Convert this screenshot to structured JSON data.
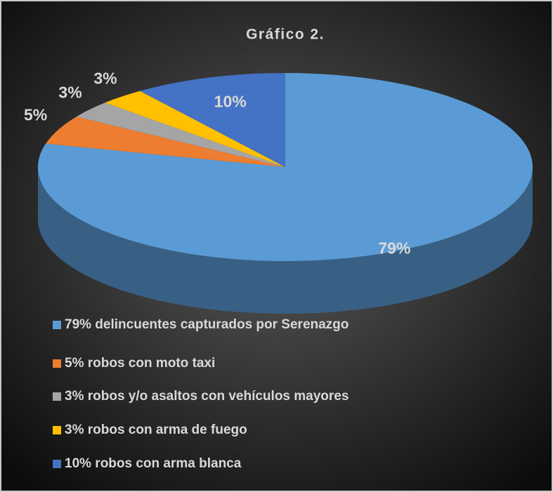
{
  "chart_data": {
    "type": "pie",
    "title": "Gráfico 2.",
    "categories": [
      "79% delincuentes capturados por Serenazgo",
      "5% robos con moto taxi",
      "3% robos y/o asaltos con vehículos mayores",
      "3% robos con arma de fuego",
      "10% robos con arma blanca"
    ],
    "values": [
      79,
      5,
      3,
      3,
      10
    ],
    "value_labels": [
      "79%",
      "5%",
      "3%",
      "3%",
      "10%"
    ],
    "colors": [
      "#5b9bd5",
      "#ed7d31",
      "#a5a5a5",
      "#ffc000",
      "#4472c4"
    ],
    "legend": "bottom"
  }
}
